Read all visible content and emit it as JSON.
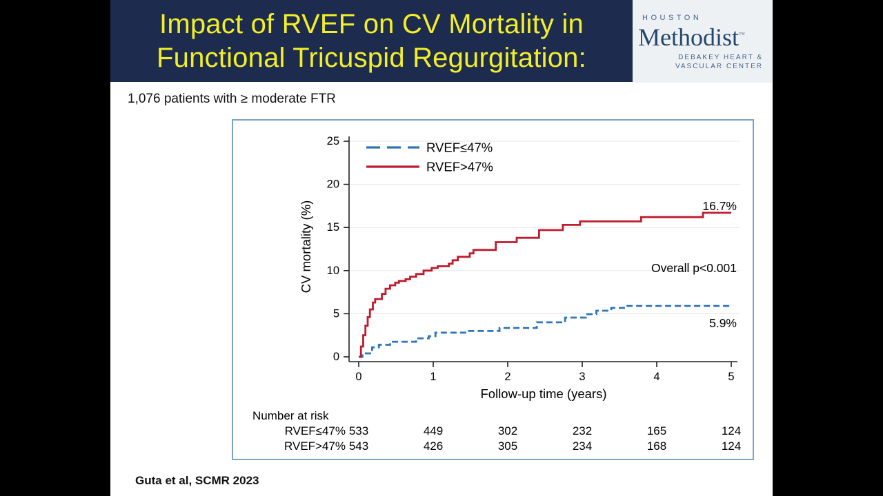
{
  "slide": {
    "title_line1": "Impact of RVEF on CV Mortality in",
    "title_line2": "Functional Tricuspid Regurgitation:",
    "subtitle": "1,076 patients with ≥ moderate FTR",
    "citation": "Guta et al, SCMR 2023"
  },
  "logo": {
    "houston": "HOUSTON",
    "methodist": "Methodist",
    "trademark": "™",
    "subline1": "DEBAKEY HEART &",
    "subline2": "VASCULAR CENTER"
  },
  "colors": {
    "header_navy": "#1d2c4e",
    "title_yellow": "#f2ef28",
    "logo_navy": "#24486b",
    "logo_steel": "#44658a",
    "curve_red": "#bf1b2c",
    "curve_blue": "#2e75b8",
    "chart_border": "#7aa3c5",
    "gridline": "#eaeaea"
  },
  "chart_data": {
    "type": "line",
    "subtype": "kaplan-meier-step",
    "title": "",
    "xlabel": "Follow-up time (years)",
    "ylabel": "CV mortality (%)",
    "xlim": [
      0,
      5
    ],
    "ylim": [
      0,
      25
    ],
    "xticks": [
      0,
      1,
      2,
      3,
      4,
      5
    ],
    "yticks": [
      0,
      5,
      10,
      15,
      20,
      25
    ],
    "grid": "horizontal",
    "legend_position": "top-left",
    "series": [
      {
        "name": "RVEF≤47%",
        "color": "#2e75b8",
        "style": "dashed",
        "final_value_pct": 5.9,
        "points": [
          [
            0,
            0
          ],
          [
            0.05,
            0.4
          ],
          [
            0.18,
            1.1
          ],
          [
            0.27,
            1.4
          ],
          [
            0.42,
            1.75
          ],
          [
            0.77,
            2.15
          ],
          [
            0.94,
            2.4
          ],
          [
            1.03,
            2.8
          ],
          [
            1.46,
            3.0
          ],
          [
            1.89,
            3.35
          ],
          [
            2.39,
            4.0
          ],
          [
            2.77,
            4.55
          ],
          [
            3.05,
            4.95
          ],
          [
            3.19,
            5.35
          ],
          [
            3.39,
            5.67
          ],
          [
            3.56,
            5.9
          ],
          [
            5,
            5.9
          ]
        ]
      },
      {
        "name": "RVEF>47%",
        "color": "#bf1b2c",
        "style": "solid",
        "final_value_pct": 16.7,
        "points": [
          [
            0,
            0
          ],
          [
            0.03,
            1.2
          ],
          [
            0.06,
            2.5
          ],
          [
            0.09,
            3.6
          ],
          [
            0.12,
            4.6
          ],
          [
            0.15,
            5.5
          ],
          [
            0.19,
            6.3
          ],
          [
            0.22,
            6.7
          ],
          [
            0.31,
            7.3
          ],
          [
            0.36,
            7.9
          ],
          [
            0.42,
            8.3
          ],
          [
            0.49,
            8.6
          ],
          [
            0.54,
            8.8
          ],
          [
            0.63,
            9.0
          ],
          [
            0.69,
            9.3
          ],
          [
            0.77,
            9.6
          ],
          [
            0.87,
            10.0
          ],
          [
            0.98,
            10.3
          ],
          [
            1.06,
            10.5
          ],
          [
            1.21,
            10.8
          ],
          [
            1.26,
            11.2
          ],
          [
            1.33,
            11.6
          ],
          [
            1.49,
            12.0
          ],
          [
            1.54,
            12.4
          ],
          [
            1.84,
            13.3
          ],
          [
            2.12,
            13.8
          ],
          [
            2.42,
            14.7
          ],
          [
            2.74,
            15.3
          ],
          [
            2.97,
            15.7
          ],
          [
            3.79,
            16.2
          ],
          [
            4.62,
            16.7
          ],
          [
            5,
            16.7
          ]
        ]
      }
    ],
    "annotations": [
      {
        "text": "16.7%",
        "x": 5,
        "y": 17.5,
        "anchor": "end",
        "name": "final-rate-high-rvef-group"
      },
      {
        "text": "Overall p<0.001",
        "x": 5,
        "y": 10.3,
        "anchor": "end",
        "name": "p-value"
      },
      {
        "text": "5.9%",
        "x": 5,
        "y": 3.9,
        "anchor": "end",
        "name": "final-rate-low-rvef-group"
      }
    ],
    "risk_table": {
      "title": "Number at risk",
      "rows": [
        {
          "label": "RVEF≤47%",
          "values": [
            533,
            449,
            302,
            232,
            165,
            124
          ]
        },
        {
          "label": "RVEF>47%",
          "values": [
            543,
            426,
            305,
            234,
            168,
            124
          ]
        }
      ]
    }
  }
}
